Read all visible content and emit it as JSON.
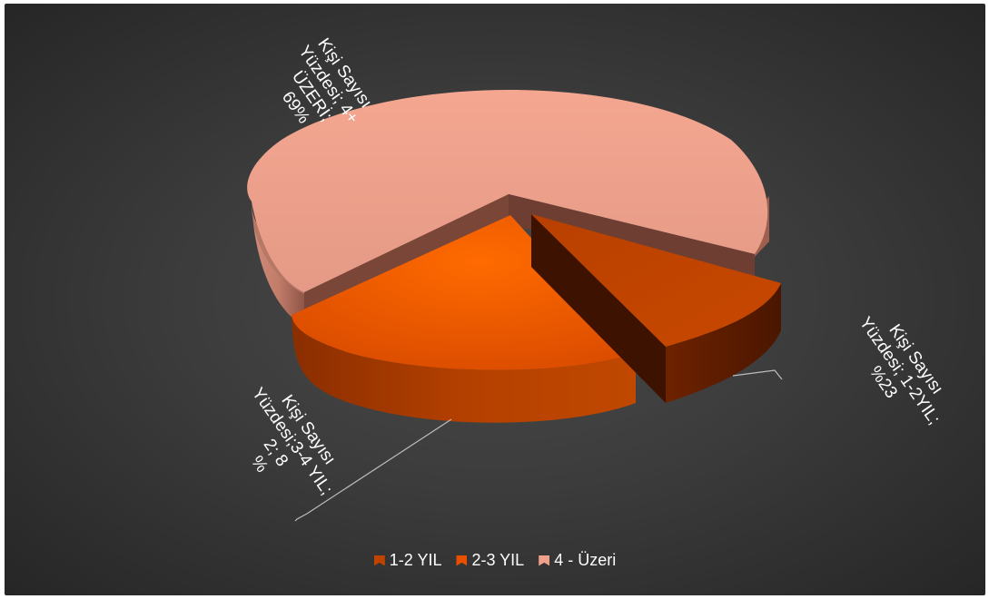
{
  "chart_data": {
    "type": "pie",
    "style": "3d-exploded",
    "slices": [
      {
        "category": "1-2 YIL",
        "label": "Kişi Sayısı\nYüzdesi; 1-2YIL;\n%23",
        "value": 23,
        "color": "#c04400"
      },
      {
        "category": "2-3 YIL",
        "label": "Kişi Sayısı\nYüzdesi;3-4 YIL;\n2; 8\n%",
        "value": 8,
        "color": "#e85000"
      },
      {
        "category": "4 - Üzeri",
        "label": "Kişi Sayısı\nYüzdesi; 4+\nÜZERİ;\n69%",
        "value": 69,
        "color": "#f0a08a"
      }
    ],
    "legend_position": "bottom",
    "background": "#3a3a3a"
  },
  "legend": {
    "items": [
      {
        "label": "1-2 YIL",
        "color": "#c04400"
      },
      {
        "label": "2-3 YIL",
        "color": "#e85000"
      },
      {
        "label": "4 - Üzeri",
        "color": "#f0a08a"
      }
    ]
  }
}
